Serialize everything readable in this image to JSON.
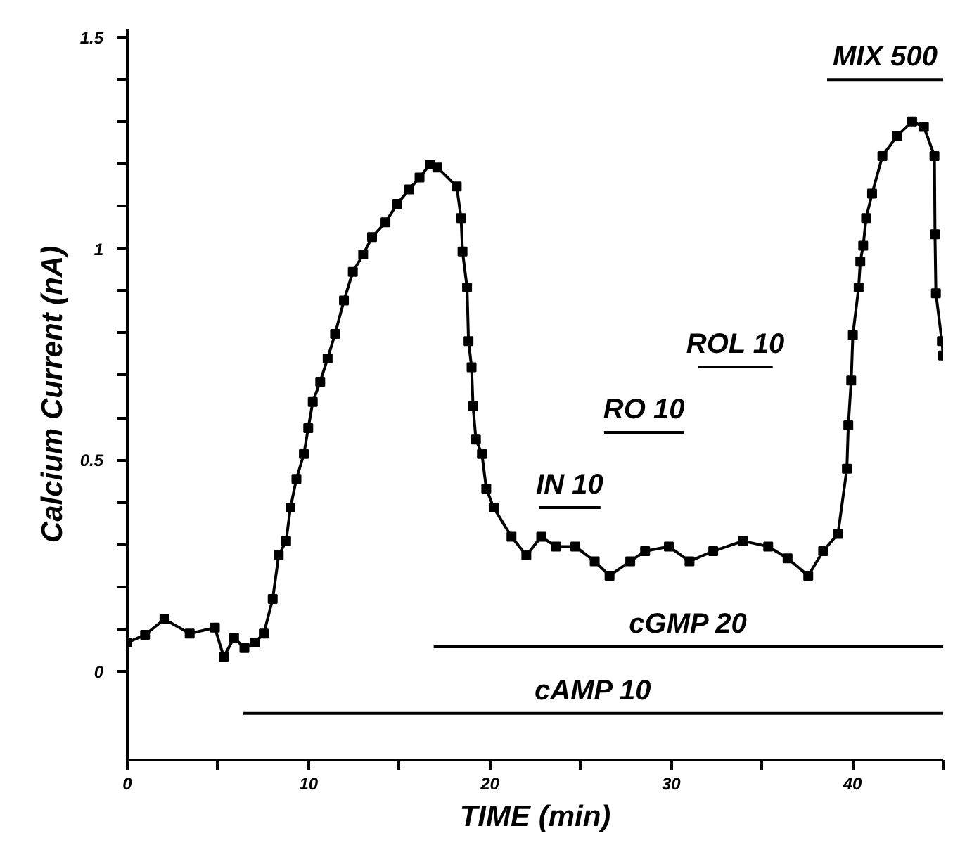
{
  "chart_data": {
    "type": "line",
    "xlabel": "TIME (min)",
    "ylabel": "Calcium Current (nA)",
    "xlim": [
      0,
      45
    ],
    "ylim": [
      -0.21,
      1.52
    ],
    "xticks": [
      0,
      {
        "value": 5,
        "label": null
      },
      10,
      {
        "value": 15,
        "label": null
      },
      20,
      {
        "value": 25,
        "label": null
      },
      30,
      {
        "value": 35,
        "label": null
      },
      40,
      {
        "value": 45,
        "label": null
      }
    ],
    "yticks": [
      0,
      {
        "value": 0.1,
        "label": null
      },
      {
        "value": 0.2,
        "label": null
      },
      {
        "value": 0.3,
        "label": null
      },
      {
        "value": 0.4,
        "label": null
      },
      0.5,
      {
        "value": 0.6,
        "label": null
      },
      {
        "value": 0.7,
        "label": null
      },
      {
        "value": 0.8,
        "label": null
      },
      {
        "value": 0.9,
        "label": null
      },
      1,
      {
        "value": 1.1,
        "label": null
      },
      {
        "value": 1.2,
        "label": null
      },
      {
        "value": 1.3,
        "label": null
      },
      {
        "value": 1.4,
        "label": null
      },
      1.5
    ],
    "grid": false,
    "series": [
      {
        "marker": "square",
        "color": "#000000",
        "x": [
          0.0,
          0.98,
          2.05,
          3.44,
          4.83,
          5.32,
          5.89,
          6.46,
          7.04,
          7.53,
          8.02,
          8.35,
          8.76,
          9.0,
          9.33,
          9.74,
          9.98,
          10.23,
          10.64,
          11.05,
          11.46,
          11.95,
          12.44,
          13.01,
          13.5,
          14.24,
          14.89,
          15.55,
          16.12,
          16.69,
          17.1,
          18.17,
          18.41,
          18.49,
          18.74,
          18.82,
          18.99,
          19.07,
          19.23,
          19.56,
          19.8,
          20.21,
          21.19,
          22.01,
          22.83,
          23.65,
          24.71,
          25.78,
          26.6,
          27.74,
          28.56,
          29.87,
          31.01,
          32.32,
          33.96,
          35.35,
          36.42,
          37.56,
          38.38,
          39.2,
          39.69,
          39.77,
          39.93,
          40.02,
          40.34,
          40.43,
          40.59,
          40.75,
          41.08,
          41.65,
          42.47,
          43.29,
          43.94,
          44.52,
          44.55,
          44.6,
          44.93,
          45.0
        ],
        "values": [
          0.068,
          0.086,
          0.123,
          0.089,
          0.103,
          0.034,
          0.079,
          0.055,
          0.068,
          0.089,
          0.171,
          0.274,
          0.308,
          0.387,
          0.455,
          0.514,
          0.575,
          0.637,
          0.685,
          0.74,
          0.798,
          0.877,
          0.945,
          0.986,
          1.027,
          1.062,
          1.106,
          1.14,
          1.168,
          1.199,
          1.192,
          1.147,
          1.072,
          0.993,
          0.908,
          0.781,
          0.719,
          0.627,
          0.548,
          0.514,
          0.432,
          0.387,
          0.318,
          0.274,
          0.318,
          0.295,
          0.295,
          0.26,
          0.226,
          0.26,
          0.284,
          0.295,
          0.26,
          0.284,
          0.308,
          0.295,
          0.267,
          0.226,
          0.284,
          0.325,
          0.479,
          0.582,
          0.688,
          0.795,
          0.908,
          0.969,
          1.007,
          1.072,
          1.13,
          1.219,
          1.267,
          1.301,
          1.288,
          1.219,
          1.034,
          0.894,
          0.781,
          0.747
        ]
      },
      {
        "type": "line",
        "marker": "none",
        "name": "cAMP 10",
        "color": "#000000",
        "x": [
          6.4,
          45
        ],
        "values": [
          -0.1,
          -0.1
        ]
      },
      {
        "type": "line",
        "marker": "none",
        "name": "cGMP 20",
        "color": "#000000",
        "x": [
          16.9,
          45
        ],
        "values": [
          0.058,
          0.058
        ]
      },
      {
        "type": "line",
        "marker": "none",
        "name": "IN 10",
        "color": "#000000",
        "x": [
          22.7,
          26.1
        ],
        "values": [
          0.387,
          0.387
        ]
      },
      {
        "type": "line",
        "marker": "none",
        "name": "RO 10",
        "color": "#000000",
        "x": [
          26.3,
          30.7
        ],
        "values": [
          0.565,
          0.565
        ]
      },
      {
        "type": "line",
        "marker": "none",
        "name": "ROL 10",
        "color": "#000000",
        "x": [
          31.5,
          35.6
        ],
        "values": [
          0.72,
          0.72
        ]
      },
      {
        "type": "line",
        "marker": "none",
        "name": "MIX 500",
        "color": "#000000",
        "x": [
          38.6,
          45
        ],
        "values": [
          1.4,
          1.4
        ]
      }
    ]
  }
}
